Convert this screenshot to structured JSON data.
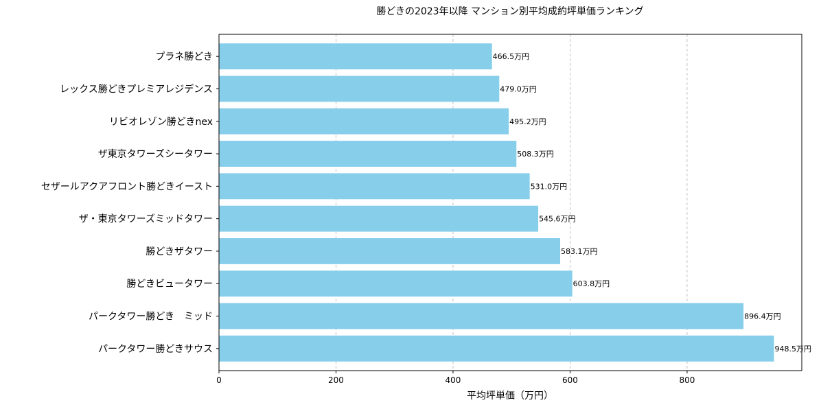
{
  "chart_data": {
    "type": "bar",
    "orientation": "horizontal",
    "title": "勝どきの2023年以降 マンション別平均成約坪単価ランキング",
    "xlabel": "平均坪単価（万円）",
    "ylabel": "",
    "categories": [
      "プラネ勝どき",
      "レックス勝どきプレミアレジデンス",
      "リビオレゾン勝どきnex",
      "ザ東京タワーズシータワー",
      "セザールアクアフロント勝どきイースト",
      "ザ・東京タワーズミッドタワー",
      "勝どきザタワー",
      "勝どきビュータワー",
      "パークタワー勝どき　ミッド",
      "パークタワー勝どきサウス"
    ],
    "values": [
      466.5,
      479.0,
      495.2,
      508.3,
      531.0,
      545.6,
      583.1,
      603.8,
      896.4,
      948.5
    ],
    "data_labels": [
      "466.5万円",
      "479.0万円",
      "495.2万円",
      "508.3万円",
      "531.0万円",
      "545.6万円",
      "583.1万円",
      "603.8万円",
      "896.4万円",
      "948.5万円"
    ],
    "xlim": [
      0,
      996
    ],
    "xticks": [
      0,
      200,
      400,
      600,
      800
    ],
    "grid": "x-dashed",
    "bar_color": "#87CEEB"
  }
}
